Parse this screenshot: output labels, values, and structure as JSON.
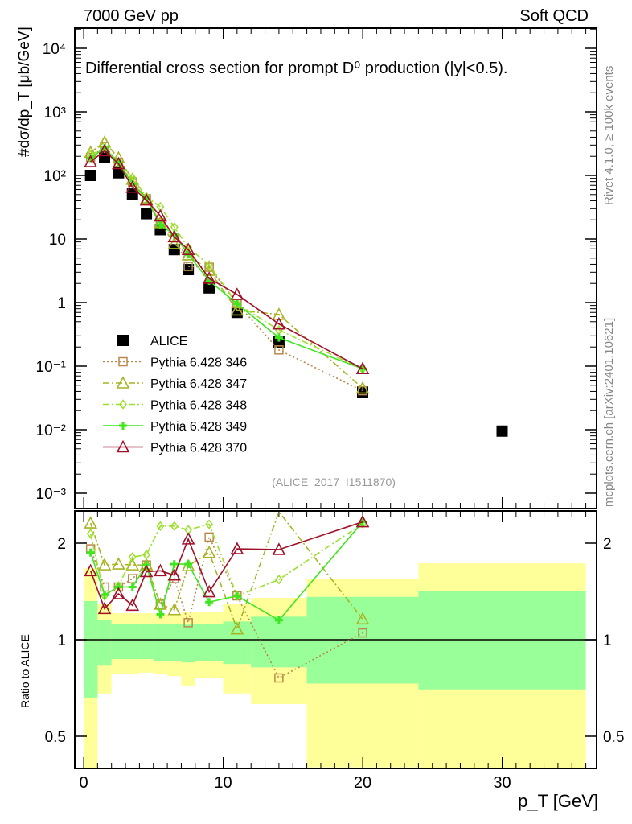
{
  "header": {
    "left": "7000 GeV pp",
    "right": "Soft QCD"
  },
  "side": {
    "top": "Rivet 4.1.0, ≥ 100k events",
    "bottom": "mcplots.cern.ch [arXiv:2401.10621]"
  },
  "chart_data": [
    {
      "type": "scatter",
      "title": "Differential cross section for prompt D⁰ production (|y|<0.5).",
      "ylabel": "#dσ/dp_T [μb/GeV]",
      "yscale": "log",
      "ylim": [
        0.0005,
        20000
      ],
      "xlim": [
        -0.7,
        36.8
      ],
      "ytick_labels": [
        "10⁻³",
        "10⁻²",
        "10⁻¹",
        "1",
        "10",
        "10²",
        "10³",
        "10⁴"
      ],
      "ytick_values": [
        0.001,
        0.01,
        0.1,
        1,
        10,
        100,
        1000,
        10000
      ],
      "annotation": "(ALICE_2017_I1511870)",
      "legend_position": "bottom-left",
      "x": [
        0.5,
        1.5,
        2.5,
        3.5,
        4.5,
        5.5,
        6.5,
        7.5,
        9,
        11,
        14,
        20
      ],
      "series": [
        {
          "name": "ALICE",
          "color": "#000000",
          "marker": "square-filled",
          "x": [
            0.5,
            1.5,
            2.5,
            3.5,
            4.5,
            5.5,
            6.5,
            7.5,
            9,
            11,
            14,
            20,
            30
          ],
          "values": [
            100,
            195,
            110,
            51,
            25,
            14,
            6.8,
            3.3,
            1.7,
            0.7,
            0.24,
            0.039,
            0.0095
          ]
        },
        {
          "name": "Pythia 6.428 346",
          "color": "#b8894a",
          "marker": "square-open",
          "dash": "2,3",
          "values": [
            192,
            285,
            161,
            79,
            43,
            18,
            10.5,
            3.7,
            3.6,
            0.96,
            0.18,
            0.041
          ]
        },
        {
          "name": "Pythia 6.428 347",
          "color": "#a8b424",
          "marker": "triangle-open",
          "dash": "8,3,2,3",
          "values": [
            231,
            333,
            189,
            87,
            43,
            18,
            8.4,
            5.6,
            3.2,
            0.76,
            0.65,
            0.045
          ]
        },
        {
          "name": "Pythia 6.428 348",
          "color": "#9be02a",
          "marker": "diamond-open",
          "dash": "8,3,2,3",
          "values": [
            214,
            267,
            162,
            92,
            46,
            32,
            15.4,
            7.3,
            3.9,
            0.96,
            0.37,
            0.09
          ]
        },
        {
          "name": "Pythia 6.428 349",
          "color": "#3ee61e",
          "marker": "cross",
          "dash": "",
          "values": [
            187,
            269,
            161,
            74,
            43,
            16.8,
            11.7,
            5.7,
            2.2,
            0.96,
            0.28,
            0.091
          ]
        },
        {
          "name": "Pythia 6.428 370",
          "color": "#a01028",
          "marker": "triangle-open",
          "dash": "",
          "values": [
            164,
            244,
            153,
            65,
            41,
            23,
            10.8,
            6.8,
            2.4,
            1.34,
            0.46,
            0.091
          ]
        }
      ]
    },
    {
      "type": "line",
      "ylabel": "Ratio to ALICE",
      "xlabel": "p_T [GeV]",
      "yscale": "log",
      "ylim": [
        0.35,
        2.4
      ],
      "ytick_labels": [
        "0.5",
        "1",
        "2"
      ],
      "ytick_values": [
        0.5,
        1,
        2
      ],
      "xtick_labels": [
        "0",
        "10",
        "20",
        "30"
      ],
      "xtick_values": [
        0,
        10,
        20,
        30
      ],
      "bin_edges": [
        0,
        1,
        2,
        3,
        4,
        5,
        6,
        7,
        8,
        10,
        12,
        16,
        24,
        36
      ],
      "band_inner": {
        "color": "#99ff99",
        "lo": [
          0.66,
          0.83,
          0.87,
          0.87,
          0.87,
          0.86,
          0.86,
          0.85,
          0.86,
          0.84,
          0.82,
          0.73,
          0.7
        ],
        "hi": [
          1.32,
          1.15,
          1.12,
          1.12,
          1.12,
          1.12,
          1.12,
          1.12,
          1.12,
          1.14,
          1.18,
          1.36,
          1.42
        ]
      },
      "band_outer": {
        "color": "#ffff99",
        "lo": [
          0.3,
          0.68,
          0.78,
          0.78,
          0.79,
          0.78,
          0.77,
          0.72,
          0.76,
          0.68,
          0.63,
          0.4,
          0.3
        ],
        "hi": [
          1.67,
          1.29,
          1.21,
          1.21,
          1.21,
          1.2,
          1.2,
          1.22,
          1.22,
          1.29,
          1.35,
          1.55,
          1.73
        ]
      },
      "series": [
        {
          "name": "Pythia 6.428 346",
          "values": [
            1.92,
            1.46,
            1.46,
            1.55,
            1.71,
            1.29,
            1.55,
            1.13,
            2.09,
            1.37,
            0.76,
            1.05
          ]
        },
        {
          "name": "Pythia 6.428 347",
          "values": [
            2.31,
            1.71,
            1.72,
            1.71,
            1.71,
            1.29,
            1.24,
            1.7,
            1.87,
            1.08,
            2.7,
            1.16
          ]
        },
        {
          "name": "Pythia 6.428 348",
          "values": [
            2.14,
            1.37,
            1.47,
            1.81,
            1.84,
            2.26,
            2.26,
            2.2,
            2.29,
            1.37,
            1.54,
            2.3
          ]
        },
        {
          "name": "Pythia 6.428 349",
          "values": [
            1.87,
            1.38,
            1.46,
            1.46,
            1.71,
            1.2,
            1.72,
            1.72,
            1.31,
            1.37,
            1.15,
            2.33
          ]
        },
        {
          "name": "Pythia 6.428 370",
          "values": [
            1.64,
            1.25,
            1.39,
            1.28,
            1.63,
            1.64,
            1.59,
            2.06,
            1.41,
            1.92,
            1.91,
            2.33
          ]
        }
      ]
    }
  ]
}
